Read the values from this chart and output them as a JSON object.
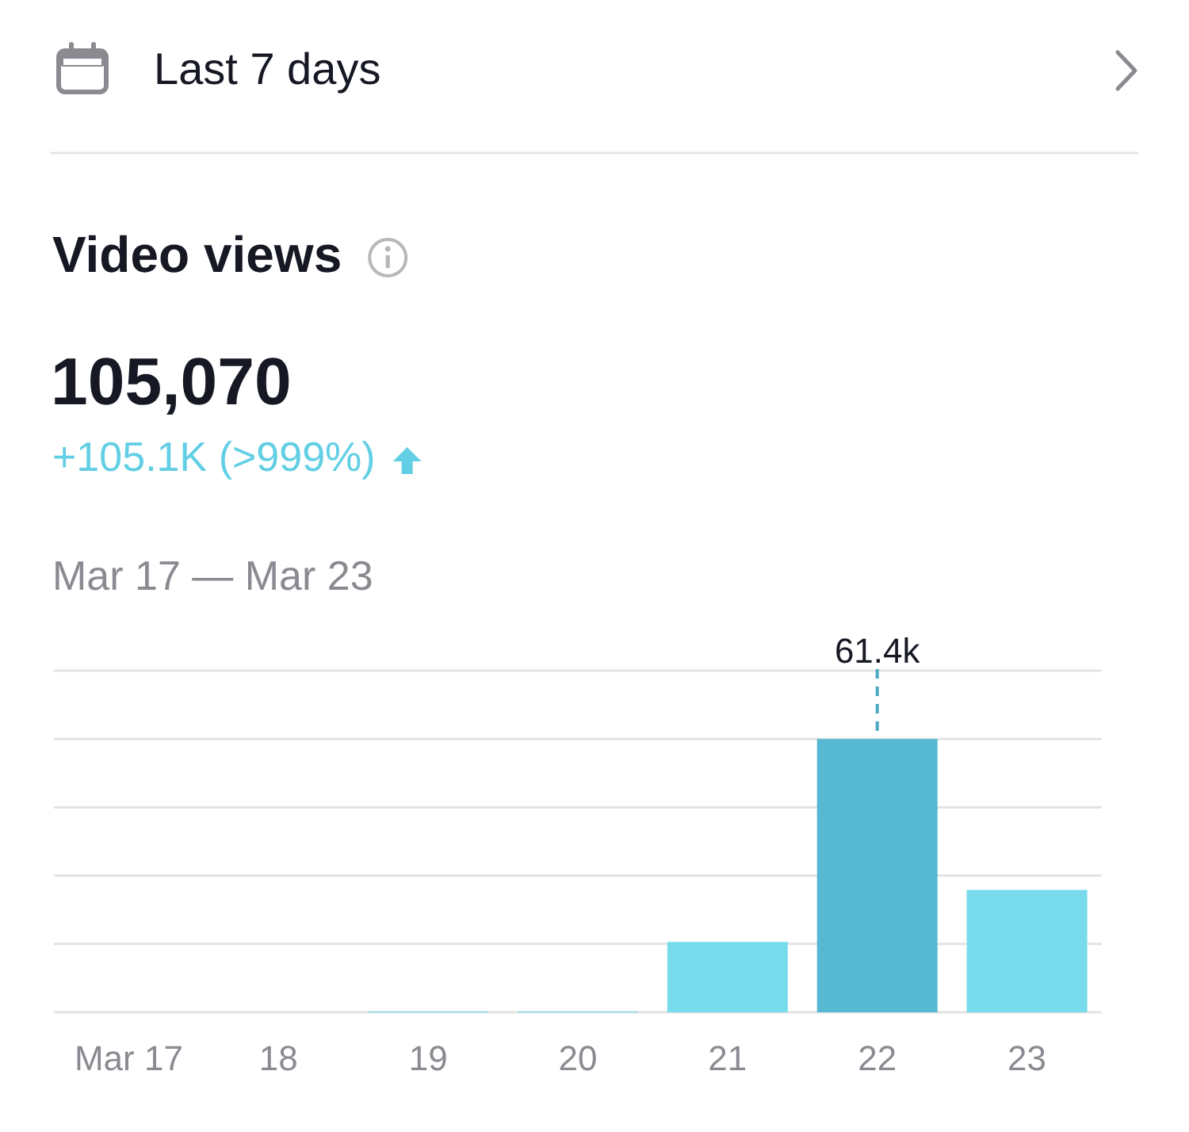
{
  "chart_data": {
    "type": "bar",
    "title": "Video views",
    "subtitle": "Mar 17 — Mar 23",
    "annotations": [
      "Last 7 days",
      "105,070",
      "+105.1K (>999%)"
    ],
    "categories": [
      "Mar 17",
      "18",
      "19",
      "20",
      "21",
      "22",
      "23"
    ],
    "values": [
      0,
      0,
      200,
      200,
      15800,
      61400,
      27500
    ],
    "colors": [
      "#77dbeb",
      "#77dbeb",
      "#77dbeb",
      "#77dbeb",
      "#77dbeb",
      "#56b8d1",
      "#77dbeb"
    ],
    "value_labels": [
      null,
      null,
      null,
      null,
      null,
      "61.4k",
      null
    ],
    "ylim": [
      0,
      76750
    ],
    "yticks": [
      {
        "value": 0,
        "label": null
      },
      {
        "value": 15350,
        "label": null
      },
      {
        "value": 30700,
        "label": null
      },
      {
        "value": 46050,
        "label": null
      },
      {
        "value": 61400,
        "label": null
      },
      {
        "value": 76750,
        "label": null
      }
    ],
    "grid": "y",
    "tick_labels": "x"
  }
}
